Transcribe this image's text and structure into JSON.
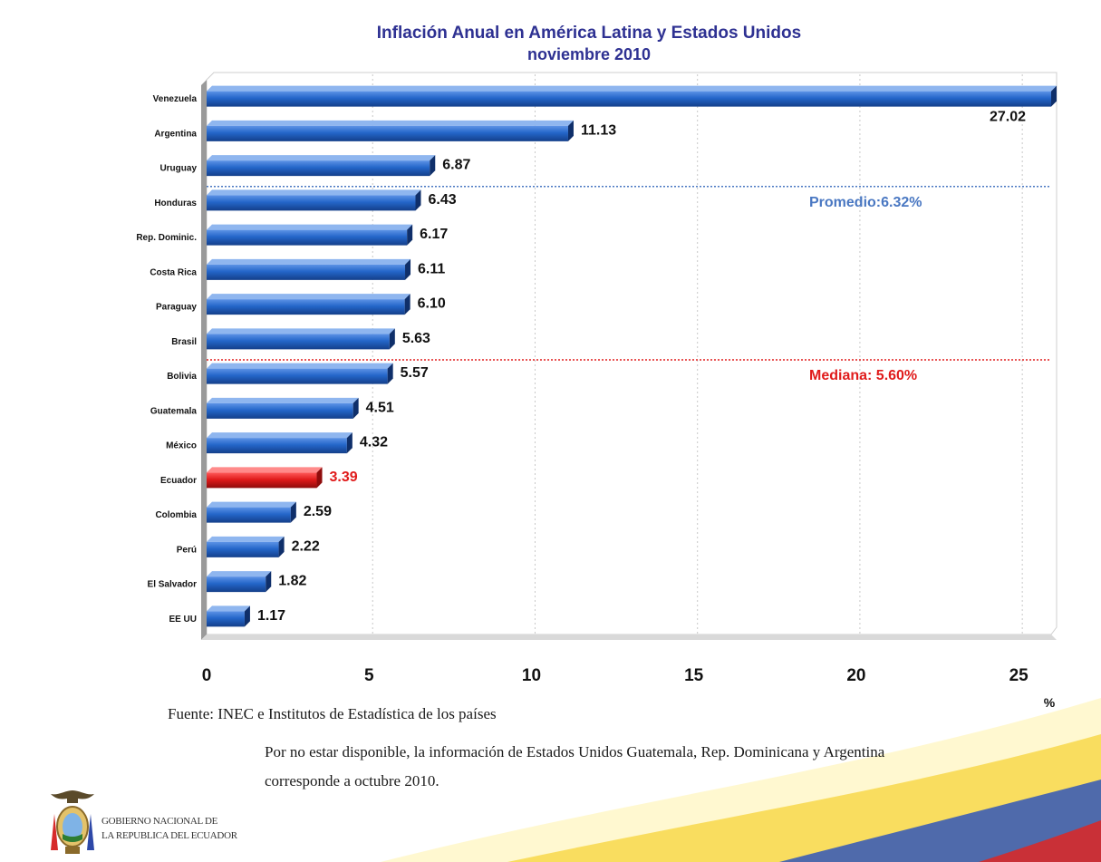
{
  "chart_data": {
    "type": "bar",
    "orientation": "horizontal",
    "title": "Inflación Anual en América Latina y Estados Unidos",
    "subtitle": "noviembre 2010",
    "xlabel": "%",
    "ylabel": "",
    "xlim": [
      0,
      26
    ],
    "xticks": [
      0,
      5,
      10,
      15,
      20,
      25
    ],
    "grid": true,
    "categories": [
      "Venezuela",
      "Argentina",
      "Uruguay",
      "Honduras",
      "Rep. Dominic.",
      "Costa Rica",
      "Paraguay",
      "Brasil",
      "Bolivia",
      "Guatemala",
      "México",
      "Ecuador",
      "Colombia",
      "Perú",
      "El Salvador",
      "EE UU"
    ],
    "values": [
      27.02,
      11.13,
      6.87,
      6.43,
      6.17,
      6.11,
      6.1,
      5.63,
      5.57,
      4.51,
      4.32,
      3.39,
      2.59,
      2.22,
      1.82,
      1.17
    ],
    "value_labels": [
      "27.02",
      "11.13",
      "6.87",
      "6.43",
      "6.17",
      "6.11",
      "6.10",
      "5.63",
      "5.57",
      "4.51",
      "4.32",
      "3.39",
      "2.59",
      "2.22",
      "1.82",
      "1.17"
    ],
    "highlight_category": "Ecuador",
    "colors": {
      "bar": "#1f5fbf",
      "highlight": "#e01b1b",
      "average": "#4a78c2",
      "median": "#e01b1b"
    },
    "reference_lines": [
      {
        "label": "Promedio:6.32%",
        "position_between": [
          "Uruguay",
          "Honduras"
        ],
        "color": "#4a78c2"
      },
      {
        "label": "Mediana:  5.60%",
        "position_between": [
          "Brasil",
          "Bolivia"
        ],
        "color": "#e01b1b"
      }
    ]
  },
  "footer": {
    "source": "Fuente: INEC e Institutos de Estadística de los países",
    "note_line1": "Por no estar disponible, la información de Estados  Unidos  Guatemala, Rep. Dominicana y Argentina",
    "note_line2": "corresponde a octubre 2010.",
    "gov_line1": "GOBIERNO NACIONAL DE",
    "gov_line2": "LA REPUBLICA DEL ECUADOR"
  }
}
